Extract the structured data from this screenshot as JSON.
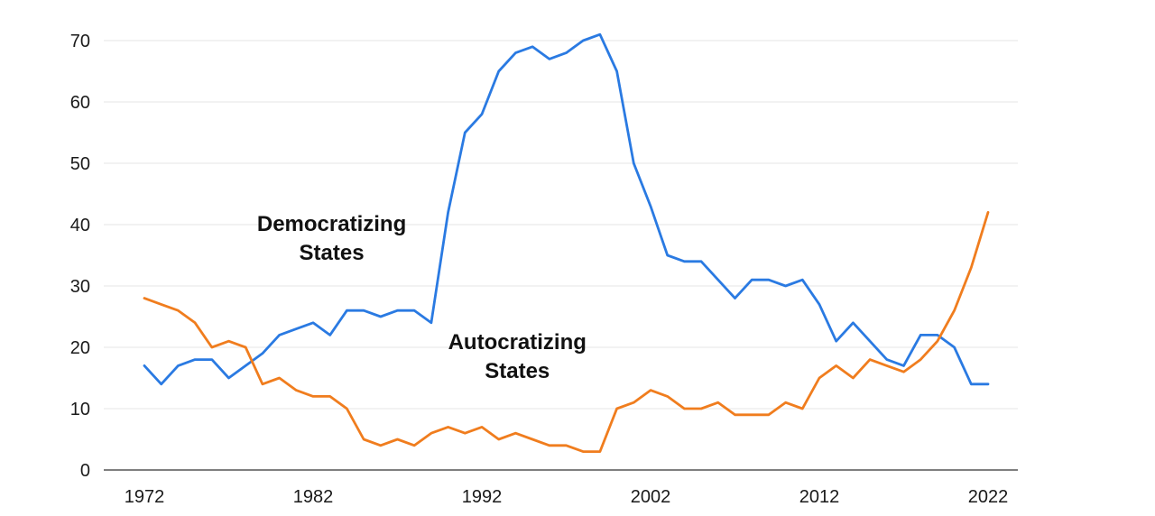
{
  "chart_data": {
    "type": "line",
    "title": "",
    "xlabel": "",
    "ylabel": "",
    "xlim": [
      1972,
      2022
    ],
    "ylim": [
      0,
      70
    ],
    "x_ticks": [
      1972,
      1982,
      1992,
      2002,
      2012,
      2022
    ],
    "y_ticks": [
      0,
      10,
      20,
      30,
      40,
      50,
      60,
      70
    ],
    "grid": "horizontal",
    "legend": "none",
    "annotations": [
      {
        "lines": [
          "Democratizing",
          "States"
        ],
        "series": "Democratizing States",
        "at_x": 1983.1,
        "at_y": 39
      },
      {
        "lines": [
          "Autocratizing",
          "States"
        ],
        "series": "Autocratizing States",
        "at_x": 1994.1,
        "at_y": 19.7
      }
    ],
    "series": [
      {
        "name": "Democratizing States",
        "color": "#2a7ae2",
        "x": [
          1972,
          1973,
          1974,
          1975,
          1976,
          1977,
          1978,
          1979,
          1980,
          1981,
          1982,
          1983,
          1984,
          1985,
          1986,
          1987,
          1988,
          1989,
          1990,
          1991,
          1992,
          1993,
          1994,
          1995,
          1996,
          1997,
          1998,
          1999,
          2000,
          2001,
          2002,
          2003,
          2004,
          2005,
          2006,
          2007,
          2008,
          2009,
          2010,
          2011,
          2012,
          2013,
          2014,
          2015,
          2016,
          2017,
          2018,
          2019,
          2020,
          2021,
          2022
        ],
        "values": [
          17,
          14,
          17,
          18,
          18,
          15,
          17,
          19,
          22,
          23,
          24,
          22,
          26,
          26,
          25,
          26,
          26,
          24,
          42,
          55,
          58,
          65,
          68,
          69,
          67,
          68,
          70,
          71,
          65,
          50,
          43,
          35,
          34,
          34,
          31,
          28,
          31,
          31,
          30,
          31,
          27,
          21,
          24,
          21,
          18,
          17,
          22,
          22,
          20,
          14,
          14
        ]
      },
      {
        "name": "Autocratizing States",
        "color": "#f07d1e",
        "x": [
          1972,
          1973,
          1974,
          1975,
          1976,
          1977,
          1978,
          1979,
          1980,
          1981,
          1982,
          1983,
          1984,
          1985,
          1986,
          1987,
          1988,
          1989,
          1990,
          1991,
          1992,
          1993,
          1994,
          1995,
          1996,
          1997,
          1998,
          1999,
          2000,
          2001,
          2002,
          2003,
          2004,
          2005,
          2006,
          2007,
          2008,
          2009,
          2010,
          2011,
          2012,
          2013,
          2014,
          2015,
          2016,
          2017,
          2018,
          2019,
          2020,
          2021,
          2022
        ],
        "values": [
          28,
          27,
          26,
          24,
          20,
          21,
          20,
          14,
          15,
          13,
          12,
          12,
          10,
          5,
          4,
          5,
          4,
          6,
          7,
          6,
          7,
          5,
          6,
          5,
          4,
          4,
          3,
          3,
          10,
          11,
          13,
          12,
          10,
          10,
          11,
          9,
          9,
          9,
          11,
          10,
          15,
          17,
          15,
          18,
          17,
          16,
          18,
          21,
          26,
          33,
          42
        ]
      }
    ]
  }
}
